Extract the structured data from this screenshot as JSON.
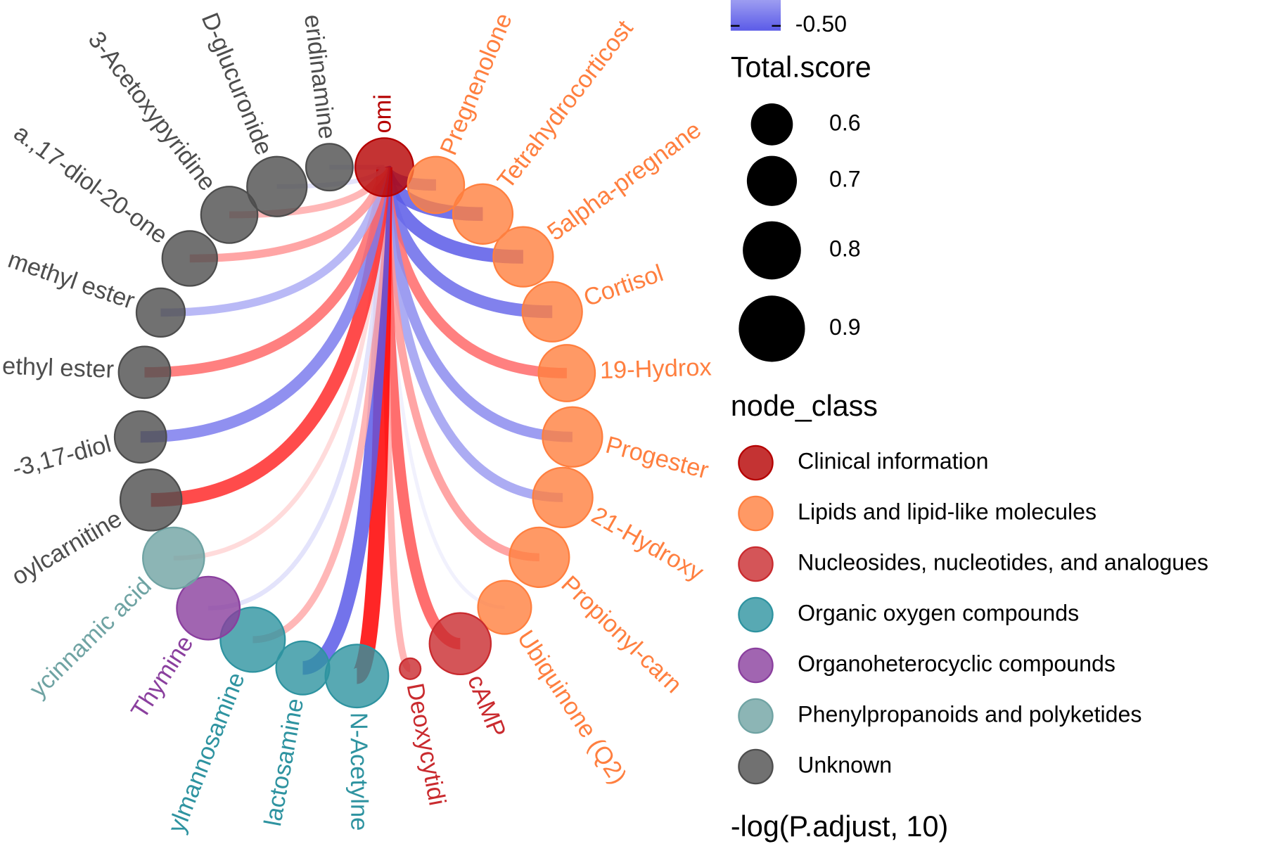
{
  "nodes": [
    {
      "label": "omi",
      "class": 0,
      "score": 0.8
    },
    {
      "label": "Pregnenolone",
      "class": 1,
      "score": 0.78,
      "correlation": -0.4
    },
    {
      "label": "Tetrahydrocorticost",
      "class": 1,
      "score": 0.82,
      "correlation": -0.5
    },
    {
      "label": "5alpha-pregnane",
      "class": 1,
      "score": 0.82,
      "correlation": -0.5
    },
    {
      "label": "Cortisol",
      "class": 1,
      "score": 0.82,
      "correlation": -0.45
    },
    {
      "label": "19-Hydrox",
      "class": 1,
      "score": 0.78,
      "correlation": 0.35
    },
    {
      "label": "Progester",
      "class": 1,
      "score": 0.82,
      "correlation": -0.35
    },
    {
      "label": "21-Hydroxy",
      "class": 1,
      "score": 0.82,
      "correlation": -0.3
    },
    {
      "label": "Propionyl-carn",
      "class": 1,
      "score": 0.82,
      "correlation": 0.25
    },
    {
      "label": "Ubiquinone (Q2)",
      "class": 1,
      "score": 0.74,
      "correlation": -0.05
    },
    {
      "label": "cAMP",
      "class": 2,
      "score": 0.84,
      "correlation": 0.4
    },
    {
      "label": "Deoxycytidi",
      "class": 2,
      "score": 0.34,
      "correlation": 0.2
    },
    {
      "label": "N-Acetylne",
      "class": 3,
      "score": 0.86,
      "correlation": 0.6
    },
    {
      "label": "lactosamine",
      "class": 3,
      "score": 0.74,
      "correlation": -0.5
    },
    {
      "label": "ylmannosamine",
      "class": 3,
      "score": 0.88,
      "correlation": 0.2
    },
    {
      "label": "Thymine",
      "class": 4,
      "score": 0.86,
      "correlation": -0.1
    },
    {
      "label": "ycinnamic acid",
      "class": 5,
      "score": 0.84,
      "correlation": 0.1
    },
    {
      "label": "oylcarnitine",
      "class": 6,
      "score": 0.84,
      "correlation": 0.5
    },
    {
      "label": "-3,17-diol",
      "class": 6,
      "score": 0.72,
      "correlation": -0.4
    },
    {
      "label": "ethyl ester",
      "class": 6,
      "score": 0.72,
      "correlation": 0.35
    },
    {
      "label": "methyl ester",
      "class": 6,
      "score": 0.68,
      "correlation": -0.25
    },
    {
      "label": "a.,17-diol-20-one",
      "class": 6,
      "score": 0.76,
      "correlation": 0.25
    },
    {
      "label": "3-Acetoxypyridine",
      "class": 6,
      "score": 0.78,
      "correlation": 0.2
    },
    {
      "label": "D-glucuronide",
      "class": 6,
      "score": 0.82,
      "correlation": -0.1
    },
    {
      "label": "eridinamine",
      "class": 6,
      "score": 0.66,
      "correlation": -0.1
    }
  ],
  "legend": {
    "correlation_tick": {
      "value": -0.5,
      "label": "-0.50"
    },
    "negative_color": "#5b5be8",
    "positive_color": "#ff0000",
    "score_title": "Total.score",
    "score_ticks": [
      0.6,
      0.7,
      0.8,
      0.9
    ],
    "class_title": "node_class",
    "classes": [
      {
        "name": "Clinical information",
        "color": "#b50000"
      },
      {
        "name": "Lipids and lipid-like molecules",
        "color": "#ff7f3f"
      },
      {
        "name": "Nucleosides, nucleotides, and analogues",
        "color": "#c92a2e"
      },
      {
        "name": "Organic oxygen compounds",
        "color": "#2e93a0"
      },
      {
        "name": "Organoheterocyclic compounds",
        "color": "#8a3f9e"
      },
      {
        "name": "Phenylpropanoids and polyketides",
        "color": "#6fa3a3"
      },
      {
        "name": "Unknown",
        "color": "#4d4d4d"
      }
    ],
    "pvalue_title": "-log(P.adjust, 10)"
  }
}
